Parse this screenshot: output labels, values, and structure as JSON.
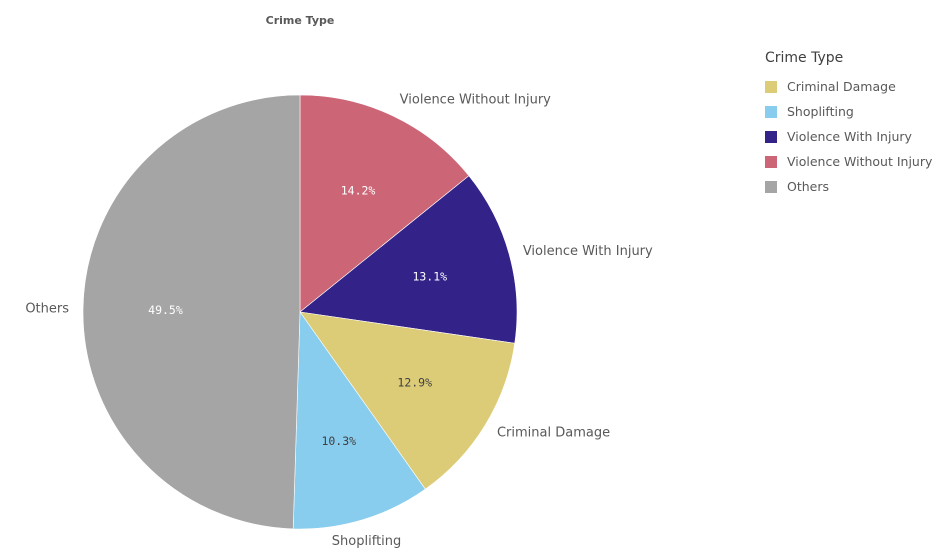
{
  "chart_data": {
    "type": "pie",
    "title": "Crime Type",
    "start_angle_deg": 0,
    "direction": "clockwise",
    "slices": [
      {
        "label": "Violence Without Injury",
        "value": 14.2,
        "display": "14.2%",
        "color": "#cc6677",
        "label_color": "#ffffff"
      },
      {
        "label": "Violence With Injury",
        "value": 13.1,
        "display": "13.1%",
        "color": "#332288",
        "label_color": "#ffffff"
      },
      {
        "label": "Criminal Damage",
        "value": 12.9,
        "display": "12.9%",
        "color": "#ddcc77",
        "label_color": "#404040"
      },
      {
        "label": "Shoplifting",
        "value": 10.3,
        "display": "10.3%",
        "color": "#88ccee",
        "label_color": "#404040"
      },
      {
        "label": "Others",
        "value": 49.5,
        "display": "49.5%",
        "color": "#a5a5a5",
        "label_color": "#ffffff"
      }
    ],
    "legend": {
      "title": "Crime Type",
      "placement": "right",
      "items": [
        {
          "label": "Criminal Damage",
          "color": "#ddcc77"
        },
        {
          "label": "Shoplifting",
          "color": "#88ccee"
        },
        {
          "label": "Violence With Injury",
          "color": "#332288"
        },
        {
          "label": "Violence Without Injury",
          "color": "#cc6677"
        },
        {
          "label": "Others",
          "color": "#a5a5a5"
        }
      ]
    }
  }
}
